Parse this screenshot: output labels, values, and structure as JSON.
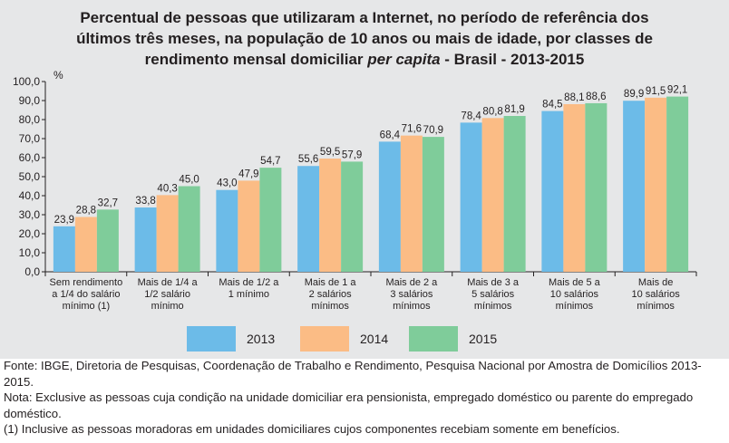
{
  "title": {
    "line1": "Percentual de pessoas que utilizaram a Internet, no período de referência dos",
    "line2": "últimos três meses, na população de 10 anos ou mais de idade, por classes de",
    "line3_pre": "rendimento mensal domiciliar ",
    "line3_italic": "per capita",
    "line3_post": " - Brasil - 2013-2015"
  },
  "chart_data": {
    "type": "bar",
    "title": "Percentual de pessoas que utilizaram a Internet, no período de referência dos últimos três meses, na população de 10 anos ou mais de idade, por classes de rendimento mensal domiciliar per capita - Brasil - 2013-2015",
    "ylabel": "%",
    "ylim": [
      0,
      100
    ],
    "yticks": [
      "0,0",
      "10,0",
      "20,0",
      "30,0",
      "40,0",
      "50,0",
      "60,0",
      "70,0",
      "80,0",
      "90,0",
      "100,0"
    ],
    "grid": false,
    "legend_position": "bottom",
    "categories": [
      [
        "Sem rendimento",
        "a 1/4 do salário",
        "mínimo (1)"
      ],
      [
        "Mais de 1/4 a",
        "1/2 salário",
        "mínimo"
      ],
      [
        "Mais de 1/2 a",
        "1 mínimo"
      ],
      [
        "Mais de 1 a",
        "2 salários",
        "mínimos"
      ],
      [
        "Mais de 2 a",
        "3 salários",
        "mínimos"
      ],
      [
        "Mais de 3 a",
        "5 salários",
        "mínimos"
      ],
      [
        "Mais de 5 a",
        "10 salários",
        "mínimos"
      ],
      [
        "Mais de",
        "10 salários",
        "mínimos"
      ]
    ],
    "series": [
      {
        "name": "2013",
        "color": "#6cbbe8",
        "values": [
          23.9,
          33.8,
          43.0,
          55.6,
          68.4,
          78.4,
          84.5,
          89.9
        ],
        "labels": [
          "23,9",
          "33,8",
          "43,0",
          "55,6",
          "68,4",
          "78,4",
          "84,5",
          "89,9"
        ]
      },
      {
        "name": "2014",
        "color": "#fbbc85",
        "values": [
          28.8,
          40.3,
          47.9,
          59.5,
          71.6,
          80.8,
          88.1,
          91.5
        ],
        "labels": [
          "28,8",
          "40,3",
          "47,9",
          "59,5",
          "71,6",
          "80,8",
          "88,1",
          "91,5"
        ]
      },
      {
        "name": "2015",
        "color": "#7fcc9a",
        "values": [
          32.7,
          45.0,
          54.7,
          57.9,
          70.9,
          81.9,
          88.6,
          92.1
        ],
        "labels": [
          "32,7",
          "45,0",
          "54,7",
          "57,9",
          "70,9",
          "81,9",
          "88,6",
          "92,1"
        ]
      }
    ]
  },
  "notes": {
    "fonte": "Fonte: IBGE, Diretoria de Pesquisas, Coordenação de Trabalho e Rendimento, Pesquisa Nacional por Amostra de Domicílios 2013-2015.",
    "nota": "Nota: Exclusive as pessoas cuja condição na unidade domiciliar era pensionista, empregado doméstico ou parente do empregado doméstico.",
    "note1": "(1) Inclusive as pessoas moradoras em unidades domiciliares cujos componentes recebiam somente em benefícios."
  }
}
